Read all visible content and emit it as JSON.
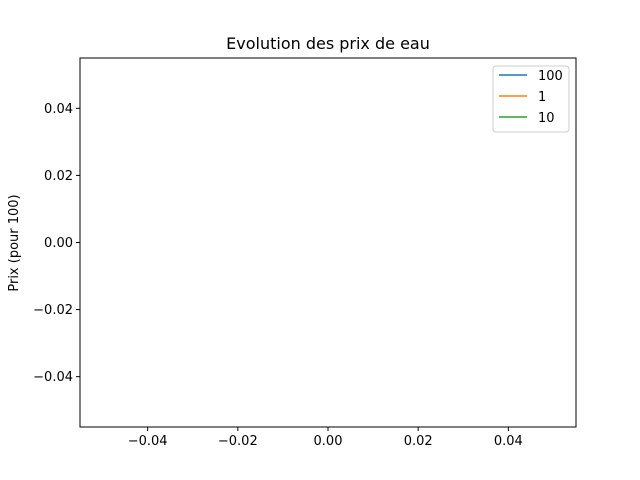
{
  "chart_data": {
    "type": "line",
    "title": "Evolution des prix de eau",
    "xlabel": "",
    "ylabel": "Prix (pour 100)",
    "xlim": [
      -0.055,
      0.055
    ],
    "ylim": [
      -0.055,
      0.055
    ],
    "xticks": [
      -0.04,
      -0.02,
      0.0,
      0.02,
      0.04
    ],
    "yticks": [
      -0.04,
      -0.02,
      0.0,
      0.02,
      0.04
    ],
    "xtick_labels": [
      "−0.04",
      "−0.02",
      "0.00",
      "0.02",
      "0.04"
    ],
    "ytick_labels": [
      "−0.04",
      "−0.02",
      "0.00",
      "0.02",
      "0.04"
    ],
    "grid": false,
    "legend_position": "top-right",
    "series": [
      {
        "name": "100",
        "color": "#1f77b4",
        "x": [],
        "y": []
      },
      {
        "name": "1",
        "color": "#ff7f0e",
        "x": [],
        "y": []
      },
      {
        "name": "10",
        "color": "#2ca02c",
        "x": [],
        "y": []
      }
    ]
  }
}
